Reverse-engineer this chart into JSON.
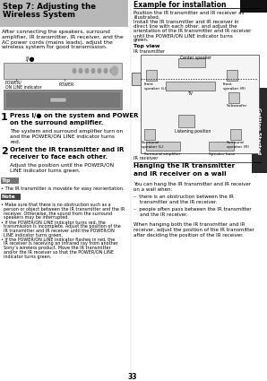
{
  "title_line1": "Step 7: Adjusting the",
  "title_line2": "Wireless System",
  "title_bg": "#b8b8b8",
  "page_bg": "#ffffff",
  "body_text": "After connecting the speakers, surround\namplifier, IR transmitter, IR receiver, and the\nAC power cords (mains leads), adjust the\nwireless system for good transmission.",
  "step1_bold": "Press I/● on the system and POWER\non the surround amplifier.",
  "step1_text": "The system and surround amplifier turn on\nand the POWER/ON LINE indicator turns\nred.",
  "step2_bold": "Orient the IR transmitter and IR\nreceiver to face each other.",
  "step2_text": "Adjust the position until the POWER/ON\nLINE indicator turns green.",
  "tip_label": "Tip",
  "tip_text": "The IR transmitter is movable for easy reorientation.",
  "note_label": "Note",
  "note_text1": "• Make sure that there is no obstruction such as a person or object between the IR transmitter and the IR receiver. Otherwise, the sound from the surround speakers may be interrupted.",
  "note_text2": "• If the POWER/ON LINE indicator turns red, the transmission is incomplete. Adjust the position of the IR transmitter and IR receiver until the POWER/ON LINE indicator turns green.",
  "note_text3": "• If the POWER/ON LINE indicator flashes in red, the IR receiver is receiving an infrared ray from another Sony’s wireless product. Move the IR transmitter and/or the IR receiver so that the POWER/ON LINE indicator turns green.",
  "right_title": "Example for installation",
  "right_intro1": "Position the IR transmitter and IR receiver as",
  "right_intro2": "illustrated.",
  "right_intro3": "Install the IR transmitter and IR receiver in",
  "right_intro4": "direct line with each other, and adjust the",
  "right_intro5": "orientation of the IR transmitter and IR receiver",
  "right_intro6": "until the POWER/ON LINE indicator turns",
  "right_intro7": "green.",
  "top_view": "Top view",
  "ir_tx_label": "IR transmitter",
  "ir_rx_label": "IR receiver",
  "center_speaker": "Center speaker",
  "front_l": "Front\nspeaker (L)",
  "front_r": "Front\nspeaker (R)",
  "tv_label": "TV",
  "subwoofer": "Subwoofer",
  "listening": "Listening position",
  "surround_l": "Surround\nspeaker (L)",
  "surround_r": "Surround\nspeaker (R)",
  "surround_amp": "Surround amplifier",
  "speaker_base": "Speaker base",
  "hang_title1": "Hanging the IR transmitter",
  "hang_title2": "and IR receiver on a wall",
  "hang_intro1": "You can hang the IR transmitter and IR receiver",
  "hang_intro2": "on a wall when:",
  "hang_b1a": "–  there is an obstruction between the IR",
  "hang_b1b": "    transmitter and the IR receiver.",
  "hang_b2a": "–  people often pass between the IR transmitter",
  "hang_b2b": "    and the IR receiver.",
  "hang_foot1": "When hanging both the IR transmitter and IR",
  "hang_foot2": "receiver, adjust the position of the IR transmitter",
  "hang_foot3": "after deciding the position of the IR receiver.",
  "page_num": "33",
  "tab_text": "Getting Started",
  "tab_bg": "#2a2a2a",
  "tab_fg": "#ffffff",
  "col_div": 148
}
